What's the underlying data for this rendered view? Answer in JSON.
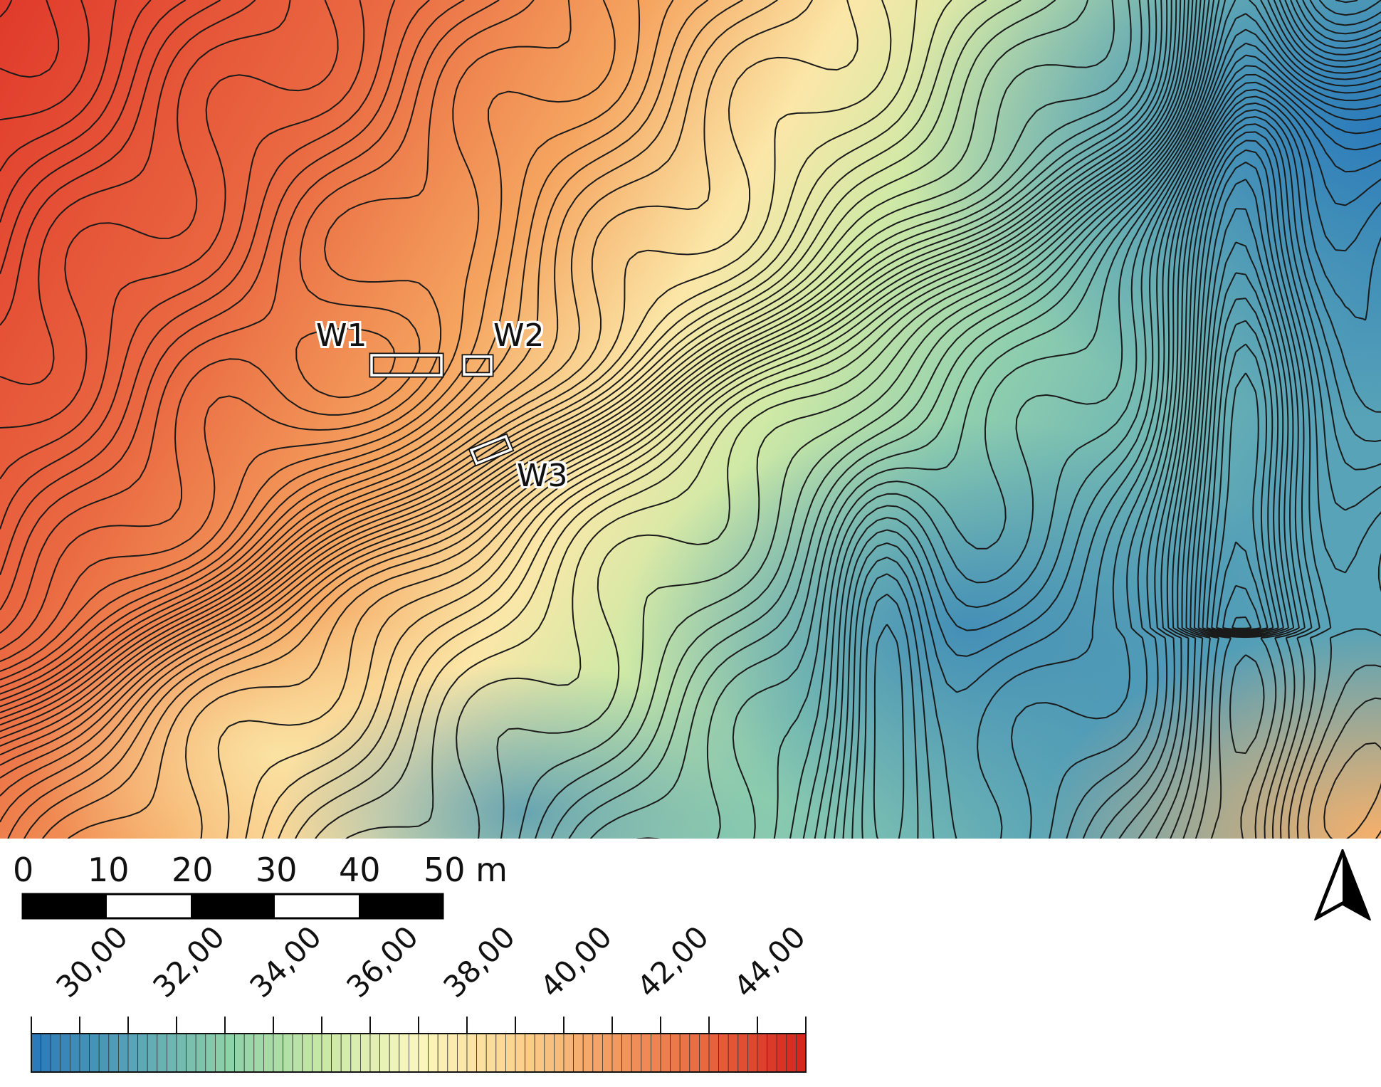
{
  "map": {
    "sites": [
      {
        "id": "W1",
        "label": "W1"
      },
      {
        "id": "W2",
        "label": "W2"
      },
      {
        "id": "W3",
        "label": "W3"
      }
    ],
    "color_ramp": [
      "#2b7bba",
      "#58a3b7",
      "#8dd1a8",
      "#c8e8a6",
      "#fbf7bd",
      "#fbd590",
      "#f39d62",
      "#e8683f",
      "#d7261e"
    ]
  },
  "scale_bar": {
    "labels": [
      "0",
      "10",
      "20",
      "30",
      "40",
      "50 m"
    ],
    "unit": "m"
  },
  "north_arrow": {
    "icon": "north-arrow-icon"
  },
  "legend": {
    "labels": [
      "30,00",
      "32,00",
      "34,00",
      "36,00",
      "38,00",
      "40,00",
      "42,00",
      "44,00"
    ],
    "min": 29.0,
    "max": 45.0
  }
}
